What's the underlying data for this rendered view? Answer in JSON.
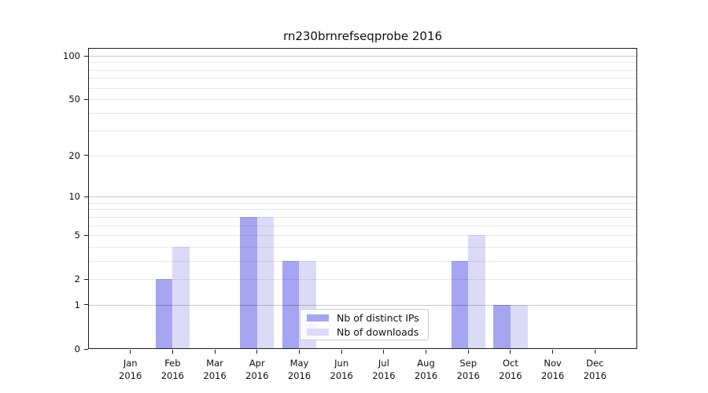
{
  "title": "rn230brnrefseqprobe 2016",
  "chart_data": {
    "type": "bar",
    "title": "rn230brnrefseqprobe 2016",
    "year_label": "2016",
    "categories": [
      "Jan",
      "Feb",
      "Mar",
      "Apr",
      "May",
      "Jun",
      "Jul",
      "Aug",
      "Sep",
      "Oct",
      "Nov",
      "Dec"
    ],
    "series": [
      {
        "name": "Nb of distinct IPs",
        "color": "#a5a5f1",
        "values": [
          0,
          2,
          0,
          7,
          3,
          0,
          0,
          0,
          3,
          1,
          0,
          0
        ]
      },
      {
        "name": "Nb of downloads",
        "color": "#dbdbf7",
        "values": [
          0,
          4,
          0,
          7,
          3,
          0,
          0,
          0,
          5,
          1,
          0,
          0
        ]
      }
    ],
    "xlabel": "",
    "ylabel": "",
    "yscale": "log10(1+x)",
    "ylim": [
      0,
      113
    ],
    "y_ticks": [
      0,
      1,
      2,
      5,
      10,
      20,
      50,
      100
    ],
    "y_grid_minor": [
      2,
      3,
      4,
      5,
      6,
      7,
      8,
      9,
      20,
      30,
      40,
      50,
      60,
      70,
      80,
      90
    ],
    "y_grid_major": [
      1,
      10,
      100
    ],
    "grid": "horizontal",
    "legend_position": "lower center",
    "colors": {
      "axis": "#1c1c1c",
      "text": "#111111",
      "grid_minor": "rgba(0,0,0,0.085)",
      "grid_major": "rgba(0,0,0,0.22)",
      "legend_border": "#cccccc",
      "background": "#ffffff"
    }
  }
}
